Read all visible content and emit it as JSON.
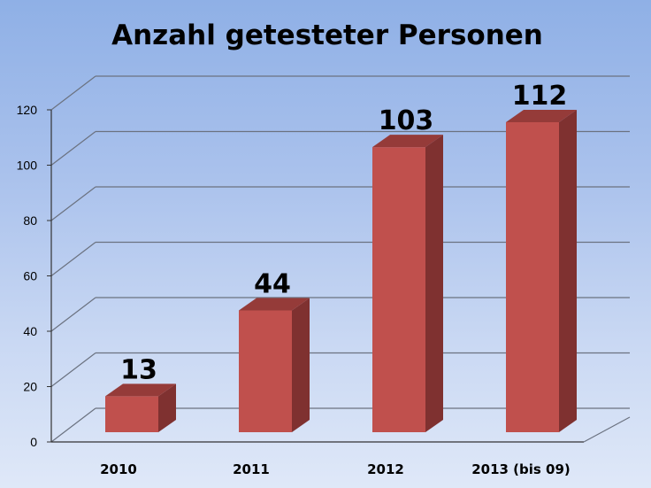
{
  "chart_data": {
    "type": "bar",
    "title": "Anzahl getesteter Personen",
    "categories": [
      "2010",
      "2011",
      "2012",
      "2013 (bis 09)"
    ],
    "values": [
      13,
      44,
      103,
      112
    ],
    "data_labels": [
      "13",
      "44",
      "103",
      "112"
    ],
    "ylim": [
      0,
      120
    ],
    "yticks": [
      "0",
      "20",
      "40",
      "60",
      "80",
      "100",
      "120"
    ],
    "xlabel": "",
    "ylabel": "",
    "grid": true,
    "legend": "none",
    "three_d": true,
    "colors": {
      "bar_front": "#c0504d",
      "bar_side": "#7f3130",
      "bar_top": "#953b39",
      "gridline": "#6b7280"
    }
  }
}
